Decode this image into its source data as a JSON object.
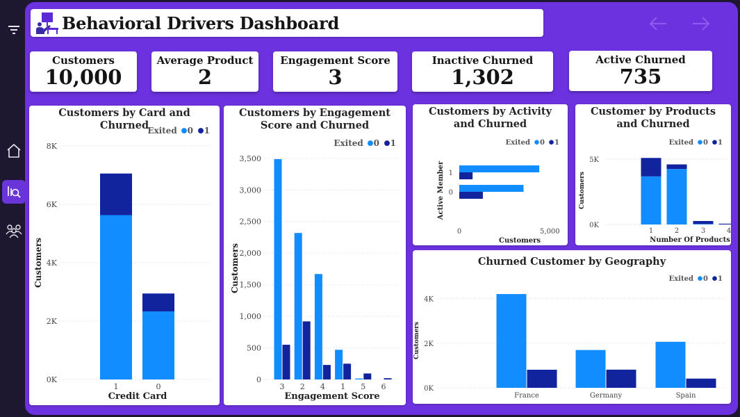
{
  "header": {
    "title": "Behavioral Drivers Dashboard"
  },
  "nav": {
    "back_icon": "arrow-left-icon",
    "forward_icon": "arrow-right-icon",
    "rail_icons": [
      "filter-icon",
      "home-icon",
      "search-chart-icon",
      "people-group-icon"
    ]
  },
  "colors": {
    "canvas": "#6c32df",
    "rail": "#1e1730",
    "series_0": "#118dff",
    "series_1": "#12239e",
    "text": "#141414"
  },
  "kpis": [
    {
      "label": "Customers",
      "value": "10,000"
    },
    {
      "label": "Average Product",
      "value": "2"
    },
    {
      "label": "Engagement Score",
      "value": "3"
    },
    {
      "label": "Inactive Churned",
      "value": "1,302"
    },
    {
      "label": "Active Churned",
      "value": "735"
    }
  ],
  "legend": {
    "title": "Exited",
    "labels": [
      "0",
      "1"
    ]
  },
  "chart_data": [
    {
      "type": "bar",
      "stacked": true,
      "title": "Customers by Card and Churned",
      "xlabel": "Credit Card",
      "ylabel": "Customers",
      "categories": [
        "1",
        "0"
      ],
      "series": [
        {
          "name": "0",
          "values": [
            5631,
            2332
          ]
        },
        {
          "name": "1",
          "values": [
            1424,
            613
          ]
        }
      ],
      "ylim": [
        0,
        8000
      ],
      "yticks": [
        "0K",
        "2K",
        "4K",
        "6K",
        "8K"
      ],
      "legend_position": "top-right"
    },
    {
      "type": "bar",
      "title": "Customers by Engagement Score and Churned",
      "xlabel": "Engagement Score",
      "ylabel": "Customers",
      "categories": [
        "3",
        "2",
        "4",
        "1",
        "5",
        "6"
      ],
      "series": [
        {
          "name": "0",
          "values": [
            3490,
            2320,
            1670,
            470,
            15,
            0
          ]
        },
        {
          "name": "1",
          "values": [
            550,
            920,
            230,
            250,
            95,
            20
          ]
        }
      ],
      "ylim": [
        0,
        3500
      ],
      "yticks": [
        "0",
        "500",
        "1,000",
        "1,500",
        "2,000",
        "2,500",
        "3,000",
        "3,500"
      ],
      "legend_position": "top-right"
    },
    {
      "type": "bar",
      "orientation": "horizontal",
      "title": "Customers by Activity and Churned",
      "xlabel": "Customers",
      "ylabel": "Active Member",
      "categories": [
        "1",
        "0"
      ],
      "series": [
        {
          "name": "0",
          "values": [
            4416,
            3547
          ]
        },
        {
          "name": "1",
          "values": [
            735,
            1302
          ]
        }
      ],
      "xlim": [
        0,
        5600
      ],
      "xticks": [
        "0",
        "5,000"
      ],
      "legend_position": "top-right"
    },
    {
      "type": "bar",
      "stacked": true,
      "title": "Customer by Products and Churned",
      "xlabel": "Number Of Products",
      "ylabel": "Customers",
      "categories": [
        "1",
        "2",
        "3",
        "4"
      ],
      "series": [
        {
          "name": "0",
          "values": [
            3675,
            4242,
            46,
            0
          ]
        },
        {
          "name": "1",
          "values": [
            1409,
            348,
            220,
            60
          ]
        }
      ],
      "ylim": [
        0,
        6000
      ],
      "yticks": [
        "0K",
        "5K"
      ],
      "legend_position": "top-right"
    },
    {
      "type": "bar",
      "title": "Churned Customer by Geography",
      "xlabel": "",
      "ylabel": "Customers",
      "categories": [
        "France",
        "Germany",
        "Spain"
      ],
      "series": [
        {
          "name": "0",
          "values": [
            4204,
            1695,
            2064
          ]
        },
        {
          "name": "1",
          "values": [
            810,
            814,
            413
          ]
        }
      ],
      "ylim": [
        0,
        4300
      ],
      "yticks": [
        "0K",
        "2K",
        "4K"
      ],
      "legend_position": "top-right"
    }
  ]
}
